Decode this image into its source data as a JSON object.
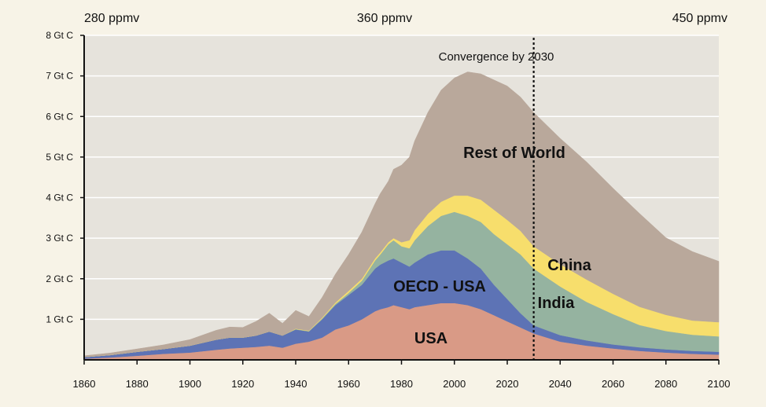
{
  "chart_data": {
    "type": "area",
    "stacked": true,
    "x": [
      1860,
      1870,
      1880,
      1890,
      1900,
      1910,
      1915,
      1920,
      1925,
      1930,
      1935,
      1940,
      1945,
      1950,
      1955,
      1960,
      1965,
      1970,
      1972,
      1975,
      1977,
      1980,
      1983,
      1985,
      1990,
      1995,
      2000,
      2005,
      2010,
      2015,
      2020,
      2025,
      2030,
      2035,
      2040,
      2050,
      2060,
      2070,
      2080,
      2090,
      2100
    ],
    "series": [
      {
        "name": "USA",
        "color": "#d99a86",
        "values": [
          0.03,
          0.06,
          0.1,
          0.15,
          0.18,
          0.25,
          0.28,
          0.3,
          0.32,
          0.35,
          0.3,
          0.4,
          0.45,
          0.55,
          0.75,
          0.85,
          1.0,
          1.2,
          1.25,
          1.3,
          1.35,
          1.3,
          1.25,
          1.3,
          1.35,
          1.4,
          1.4,
          1.35,
          1.25,
          1.1,
          0.95,
          0.8,
          0.65,
          0.55,
          0.45,
          0.35,
          0.28,
          0.22,
          0.18,
          0.15,
          0.13
        ]
      },
      {
        "name": "OECD - USA",
        "color": "#5d73b5",
        "values": [
          0.04,
          0.06,
          0.1,
          0.12,
          0.17,
          0.25,
          0.27,
          0.25,
          0.28,
          0.35,
          0.3,
          0.35,
          0.25,
          0.45,
          0.6,
          0.75,
          0.85,
          1.05,
          1.1,
          1.15,
          1.15,
          1.1,
          1.05,
          1.1,
          1.25,
          1.3,
          1.3,
          1.15,
          1.0,
          0.75,
          0.55,
          0.35,
          0.2,
          0.18,
          0.16,
          0.13,
          0.1,
          0.09,
          0.08,
          0.07,
          0.07
        ]
      },
      {
        "name": "India",
        "color": "#95b3a0",
        "values": [
          0.0,
          0.0,
          0.0,
          0.0,
          0.0,
          0.0,
          0.0,
          0.0,
          0.0,
          0.0,
          0.0,
          0.01,
          0.01,
          0.02,
          0.03,
          0.05,
          0.1,
          0.2,
          0.25,
          0.4,
          0.45,
          0.4,
          0.45,
          0.55,
          0.7,
          0.85,
          0.95,
          1.05,
          1.15,
          1.25,
          1.35,
          1.45,
          1.4,
          1.3,
          1.2,
          0.95,
          0.75,
          0.55,
          0.45,
          0.4,
          0.38
        ]
      },
      {
        "name": "China",
        "color": "#f7de6c",
        "values": [
          0.0,
          0.0,
          0.0,
          0.0,
          0.0,
          0.0,
          0.0,
          0.0,
          0.0,
          0.0,
          0.0,
          0.01,
          0.01,
          0.02,
          0.03,
          0.05,
          0.05,
          0.05,
          0.05,
          0.05,
          0.05,
          0.1,
          0.2,
          0.25,
          0.3,
          0.35,
          0.4,
          0.5,
          0.55,
          0.6,
          0.6,
          0.58,
          0.55,
          0.55,
          0.55,
          0.55,
          0.5,
          0.45,
          0.4,
          0.35,
          0.35
        ]
      },
      {
        "name": "Rest of World",
        "color": "#b9a89b",
        "values": [
          0.03,
          0.05,
          0.07,
          0.1,
          0.15,
          0.23,
          0.26,
          0.25,
          0.35,
          0.45,
          0.3,
          0.45,
          0.35,
          0.5,
          0.7,
          0.9,
          1.15,
          1.35,
          1.45,
          1.5,
          1.7,
          1.9,
          2.05,
          2.2,
          2.5,
          2.75,
          2.9,
          3.05,
          3.1,
          3.2,
          3.3,
          3.3,
          3.3,
          3.2,
          3.1,
          2.9,
          2.6,
          2.3,
          1.9,
          1.7,
          1.5
        ]
      }
    ],
    "region_labels": [
      {
        "text": "USA",
        "series": "USA"
      },
      {
        "text": "OECD - USA",
        "series": "OECD - USA"
      },
      {
        "text": "India",
        "series": "India"
      },
      {
        "text": "China",
        "series": "China"
      },
      {
        "text": "Rest of World",
        "series": "Rest of World"
      }
    ],
    "xlim": [
      1860,
      2100
    ],
    "ylim": [
      0,
      8
    ],
    "x_ticks": [
      "1860",
      "1880",
      "1900",
      "1920",
      "1940",
      "1960",
      "1980",
      "2000",
      "2020",
      "2040",
      "2060",
      "2080",
      "2100"
    ],
    "y_ticks": [
      "1 Gt C",
      "2 Gt C",
      "3 Gt C",
      "4 Gt C",
      "5 Gt C",
      "6 Gt C",
      "7 Gt C",
      "8 Gt C"
    ],
    "grid": "horizontal",
    "plot_background": "#e6e3dc",
    "ppmv_labels": [
      "280 ppmv",
      "360 ppmv",
      "450 ppmv"
    ],
    "annotation": {
      "text": "Convergence by 2030",
      "x": 2030
    },
    "xlabel": "",
    "ylabel": ""
  }
}
